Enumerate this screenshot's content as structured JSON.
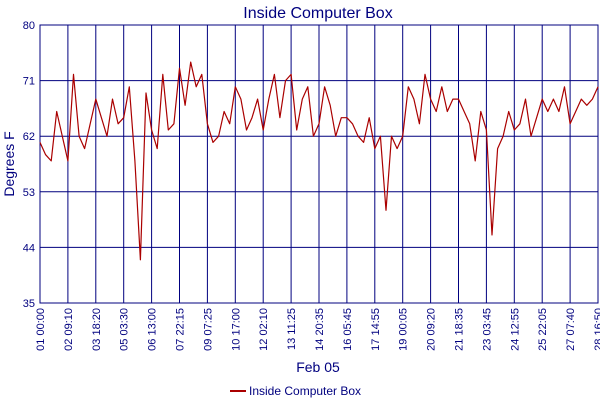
{
  "chart_data": {
    "type": "line",
    "title": "Inside Computer Box",
    "xlabel": "Feb 05",
    "ylabel": "Degrees F",
    "ylim": [
      35,
      80
    ],
    "yticks": [
      35,
      44,
      53,
      62,
      71,
      80
    ],
    "xticks": [
      "01 00:00",
      "02 09:10",
      "03 18:20",
      "05 03:30",
      "06 13:00",
      "07 22:15",
      "09 07:25",
      "10 17:00",
      "12 02:10",
      "13 11:25",
      "14 20:35",
      "16 05:45",
      "17 14:55",
      "19 00:05",
      "20 09:20",
      "21 18:35",
      "23 03:45",
      "24 12:55",
      "25 22:05",
      "27 07:40",
      "28 16:50"
    ],
    "grid": true,
    "legend_position": "bottom",
    "series": [
      {
        "name": "Inside Computer Box",
        "color": "#aa0000",
        "x_index": [
          0,
          0.2,
          0.4,
          0.6,
          0.8,
          1.0,
          1.2,
          1.4,
          1.6,
          1.8,
          2.0,
          2.2,
          2.4,
          2.6,
          2.8,
          3.0,
          3.2,
          3.4,
          3.6,
          3.8,
          4.0,
          4.2,
          4.4,
          4.6,
          4.8,
          5.0,
          5.2,
          5.4,
          5.6,
          5.8,
          6.0,
          6.2,
          6.4,
          6.6,
          6.8,
          7.0,
          7.2,
          7.4,
          7.6,
          7.8,
          8.0,
          8.2,
          8.4,
          8.6,
          8.8,
          9.0,
          9.2,
          9.4,
          9.6,
          9.8,
          10.0,
          10.2,
          10.4,
          10.6,
          10.8,
          11.0,
          11.2,
          11.4,
          11.6,
          11.8,
          12.0,
          12.2,
          12.4,
          12.6,
          12.8,
          13.0,
          13.2,
          13.4,
          13.6,
          13.8,
          14.0,
          14.2,
          14.4,
          14.6,
          14.8,
          15.0,
          15.2,
          15.4,
          15.6,
          15.8,
          16.0,
          16.2,
          16.4,
          16.6,
          16.8,
          17.0,
          17.2,
          17.4,
          17.6,
          17.8,
          18.0,
          18.2,
          18.4,
          18.6,
          18.8,
          19.0,
          19.2,
          19.4,
          19.6,
          19.8,
          20.0
        ],
        "values": [
          61,
          59,
          58,
          66,
          62,
          58,
          72,
          62,
          60,
          64,
          68,
          65,
          62,
          68,
          64,
          65,
          70,
          58,
          42,
          69,
          63,
          60,
          72,
          63,
          64,
          73,
          67,
          74,
          70,
          72,
          64,
          61,
          62,
          66,
          64,
          70,
          68,
          63,
          65,
          68,
          63,
          68,
          72,
          65,
          71,
          72,
          63,
          68,
          70,
          62,
          64,
          70,
          67,
          62,
          65,
          65,
          64,
          62,
          61,
          65,
          60,
          62,
          50,
          62,
          60,
          62,
          70,
          68,
          64,
          72,
          68,
          66,
          70,
          66,
          68,
          68,
          66,
          64,
          58,
          66,
          63,
          46,
          60,
          62,
          66,
          63,
          64,
          68,
          62,
          65,
          68,
          66,
          68,
          66,
          70,
          64,
          66,
          68,
          67,
          68,
          70
        ]
      }
    ]
  }
}
